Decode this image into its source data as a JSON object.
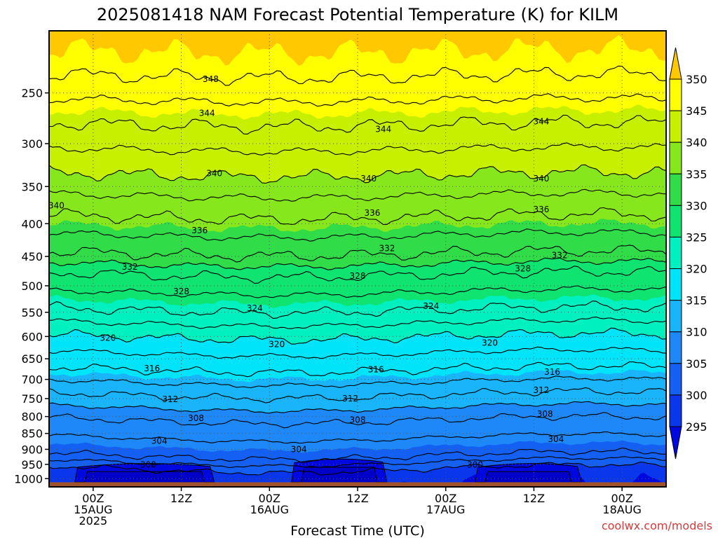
{
  "chart_data": {
    "type": "heatmap",
    "title": "2025081418 NAM Forecast Potential Temperature (K) for KILM",
    "xlabel": "Forecast Time (UTC)",
    "ylabel": "",
    "units": "K",
    "credit": "coolwx.com/models",
    "y_axis": {
      "scale": "log",
      "reversed": true,
      "range": [
        200,
        1030
      ],
      "ticks": [
        250,
        300,
        350,
        400,
        450,
        500,
        550,
        600,
        650,
        700,
        750,
        800,
        850,
        900,
        950,
        1000
      ]
    },
    "x_axis": {
      "range_hours_from_start": [
        0,
        84
      ],
      "ticks": [
        {
          "hour": 6,
          "labels": [
            "00Z",
            "15AUG",
            "2025"
          ]
        },
        {
          "hour": 18,
          "labels": [
            "12Z"
          ]
        },
        {
          "hour": 30,
          "labels": [
            "00Z",
            "16AUG"
          ]
        },
        {
          "hour": 42,
          "labels": [
            "12Z"
          ]
        },
        {
          "hour": 54,
          "labels": [
            "00Z",
            "17AUG"
          ]
        },
        {
          "hour": 66,
          "labels": [
            "12Z"
          ]
        },
        {
          "hour": 78,
          "labels": [
            "00Z",
            "18AUG"
          ]
        }
      ]
    },
    "grid": true,
    "colorbar": {
      "position": "right",
      "levels": [
        295,
        300,
        305,
        310,
        315,
        320,
        325,
        330,
        335,
        340,
        345,
        350
      ],
      "colors": [
        "#0008e0",
        "#0a37ec",
        "#1460f2",
        "#1e88f8",
        "#19b4fa",
        "#00e4fa",
        "#00f0c0",
        "#10e470",
        "#30dc48",
        "#86e81c",
        "#c6f000",
        "#ffff00",
        "#ffc800"
      ]
    },
    "contour_levels": [
      300,
      304,
      308,
      312,
      316,
      320,
      324,
      328,
      332,
      336,
      340,
      344,
      348
    ],
    "profile_level_pressure_hpa": [
      {
        "theta": 300,
        "p": 965
      },
      {
        "theta": 304,
        "p": 920
      },
      {
        "theta": 308,
        "p": 810
      },
      {
        "theta": 312,
        "p": 740
      },
      {
        "theta": 316,
        "p": 675
      },
      {
        "theta": 320,
        "p": 600
      },
      {
        "theta": 324,
        "p": 545
      },
      {
        "theta": 328,
        "p": 480
      },
      {
        "theta": 332,
        "p": 445
      },
      {
        "theta": 336,
        "p": 390
      },
      {
        "theta": 340,
        "p": 335
      },
      {
        "theta": 344,
        "p": 280
      },
      {
        "theta": 348,
        "p": 235
      }
    ],
    "contour_labels": [
      {
        "text": "348",
        "hour": 22,
        "p": 238
      },
      {
        "text": "344",
        "hour": 21.5,
        "p": 269
      },
      {
        "text": "344",
        "hour": 45.5,
        "p": 285
      },
      {
        "text": "344",
        "hour": 67,
        "p": 277
      },
      {
        "text": "340",
        "hour": 1,
        "p": 375
      },
      {
        "text": "340",
        "hour": 22.5,
        "p": 334
      },
      {
        "text": "340",
        "hour": 43.5,
        "p": 340
      },
      {
        "text": "340",
        "hour": 67,
        "p": 340
      },
      {
        "text": "336",
        "hour": 20.5,
        "p": 410
      },
      {
        "text": "336",
        "hour": 44,
        "p": 385
      },
      {
        "text": "336",
        "hour": 67,
        "p": 380
      },
      {
        "text": "332",
        "hour": 11,
        "p": 467
      },
      {
        "text": "332",
        "hour": 46,
        "p": 437
      },
      {
        "text": "332",
        "hour": 69.5,
        "p": 448
      },
      {
        "text": "328",
        "hour": 18,
        "p": 510
      },
      {
        "text": "328",
        "hour": 42,
        "p": 483
      },
      {
        "text": "328",
        "hour": 64.5,
        "p": 470
      },
      {
        "text": "324",
        "hour": 28,
        "p": 542
      },
      {
        "text": "324",
        "hour": 52,
        "p": 538
      },
      {
        "text": "320",
        "hour": 8,
        "p": 603
      },
      {
        "text": "320",
        "hour": 31,
        "p": 617
      },
      {
        "text": "320",
        "hour": 60,
        "p": 614
      },
      {
        "text": "316",
        "hour": 14,
        "p": 673
      },
      {
        "text": "316",
        "hour": 44.5,
        "p": 676
      },
      {
        "text": "316",
        "hour": 68.5,
        "p": 682
      },
      {
        "text": "312",
        "hour": 16.5,
        "p": 752
      },
      {
        "text": "312",
        "hour": 41,
        "p": 750
      },
      {
        "text": "312",
        "hour": 67,
        "p": 728
      },
      {
        "text": "308",
        "hour": 20,
        "p": 805
      },
      {
        "text": "308",
        "hour": 42,
        "p": 810
      },
      {
        "text": "308",
        "hour": 67.5,
        "p": 793
      },
      {
        "text": "304",
        "hour": 15,
        "p": 873
      },
      {
        "text": "304",
        "hour": 34,
        "p": 900
      },
      {
        "text": "304",
        "hour": 69,
        "p": 868
      },
      {
        "text": "300",
        "hour": 13.5,
        "p": 952
      },
      {
        "text": "300",
        "hour": 58,
        "p": 952
      }
    ],
    "cold_pools_below_300K": [
      {
        "hour_start": 3.5,
        "hour_end": 22.5,
        "p_top": 950
      },
      {
        "hour_start": 33,
        "hour_end": 46,
        "p_top": 935
      },
      {
        "hour_start": 58,
        "hour_end": 72.5,
        "p_top": 950
      }
    ],
    "ground_pressure_hpa": 1013
  }
}
